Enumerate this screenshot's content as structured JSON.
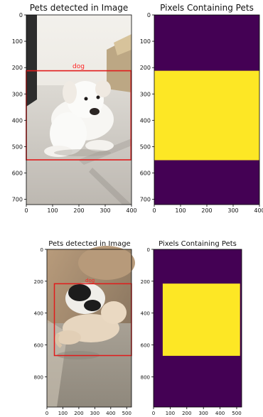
{
  "colors": {
    "detection_box": "#e11b1b",
    "mask_background": "#440154",
    "mask_foreground": "#fde725",
    "axis": "#000000"
  },
  "chart_data": [
    {
      "type": "image",
      "title": "Pets detected in Image",
      "xlim": [
        0,
        400
      ],
      "ylim": [
        720,
        0
      ],
      "xticks": [
        0,
        100,
        200,
        300,
        400
      ],
      "yticks": [
        0,
        100,
        200,
        300,
        400,
        500,
        600,
        700
      ],
      "detections": [
        {
          "label": "dog",
          "x0": 0,
          "y0": 220,
          "x1": 398,
          "y1": 560
        }
      ]
    },
    {
      "type": "heatmap",
      "title": "Pixels Containing Pets",
      "xlim": [
        0,
        400
      ],
      "ylim": [
        720,
        0
      ],
      "xticks": [
        0,
        100,
        200,
        300,
        400
      ],
      "yticks": [
        0,
        100,
        200,
        300,
        400,
        500,
        600,
        700
      ],
      "mask": {
        "x0": 0,
        "y0": 220,
        "x1": 400,
        "y1": 560
      }
    },
    {
      "type": "image",
      "title": "Pets detected in Image",
      "xlim": [
        0,
        530
      ],
      "ylim": [
        990,
        0
      ],
      "xticks": [
        0,
        100,
        200,
        300,
        400,
        500
      ],
      "yticks": [
        0,
        200,
        400,
        600,
        800
      ],
      "detections": [
        {
          "label": "dog",
          "x0": 55,
          "y0": 215,
          "x1": 520,
          "y1": 650
        }
      ]
    },
    {
      "type": "heatmap",
      "title": "Pixels Containing Pets",
      "xlim": [
        0,
        530
      ],
      "ylim": [
        990,
        0
      ],
      "xticks": [
        0,
        100,
        200,
        300,
        400,
        500
      ],
      "yticks": [
        0,
        200,
        400,
        600,
        800
      ],
      "mask": {
        "x0": 55,
        "y0": 215,
        "x1": 520,
        "y1": 650
      }
    }
  ]
}
